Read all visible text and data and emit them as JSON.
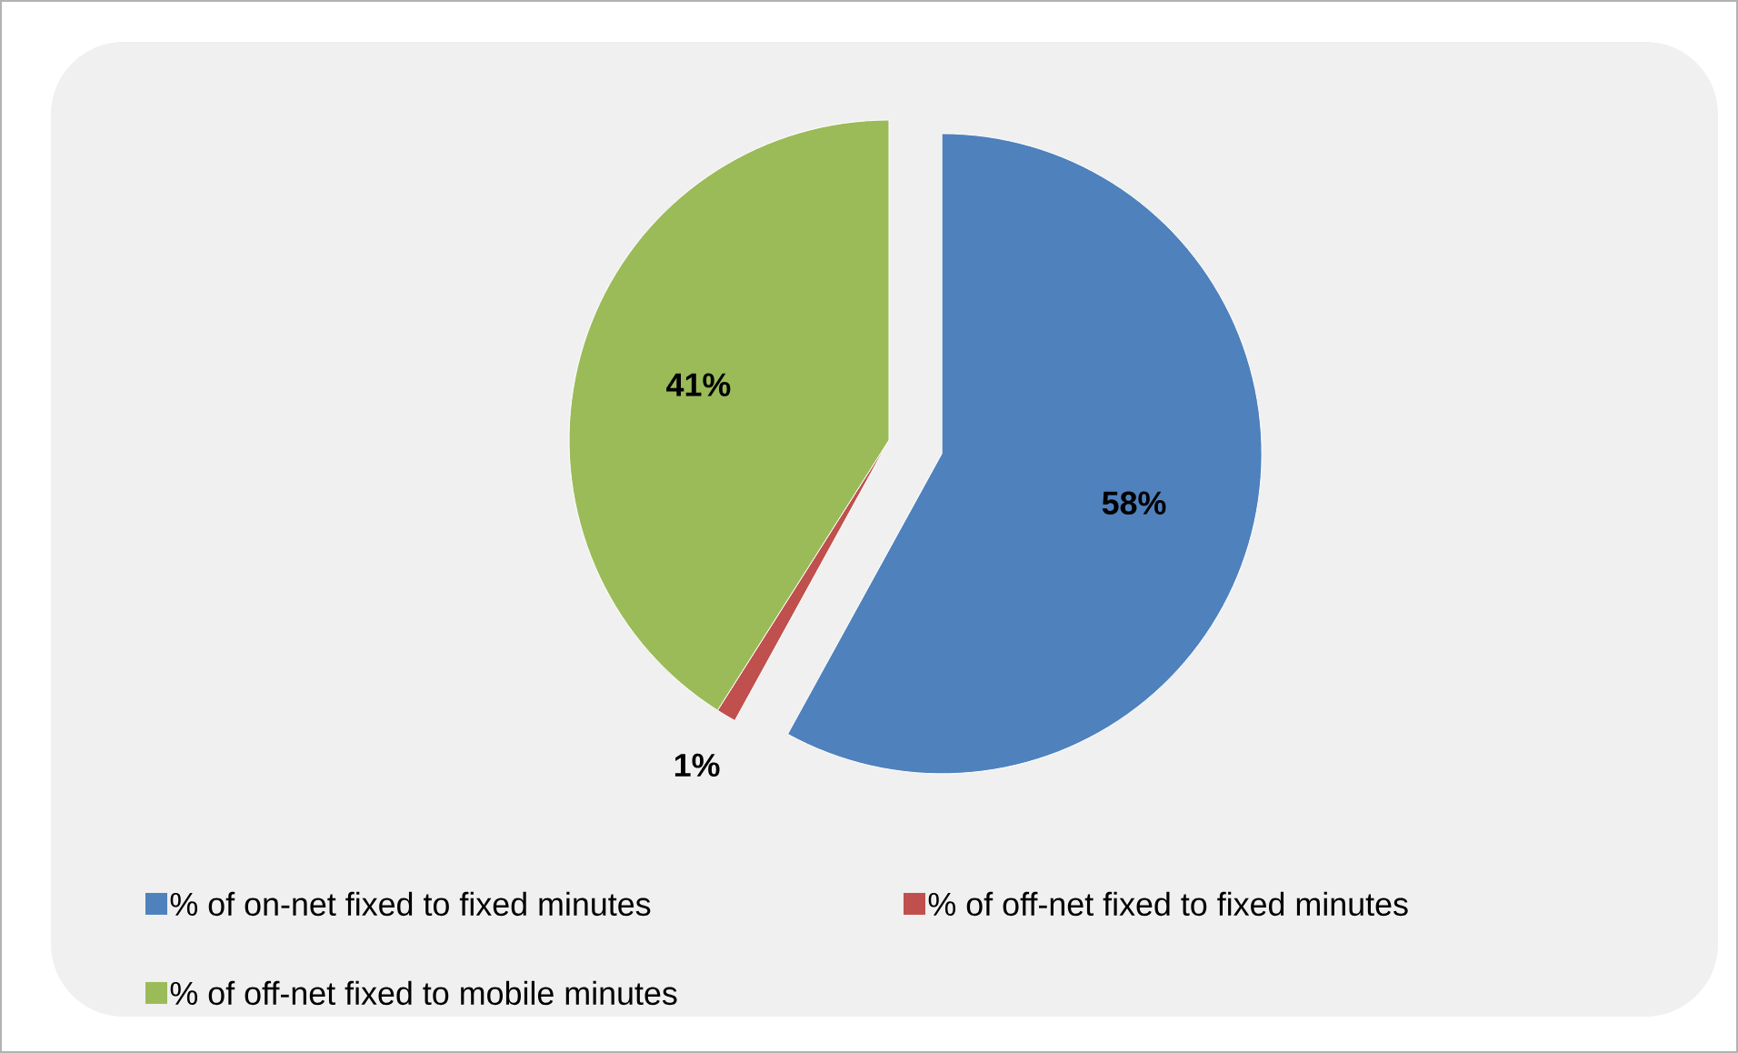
{
  "chart_data": {
    "type": "pie",
    "categories": [
      "% of on-net fixed to fixed minutes",
      "% of off-net fixed to fixed minutes",
      "% of off-net fixed to mobile minutes"
    ],
    "values": [
      58,
      1,
      41
    ],
    "colors": [
      "#4f81bd",
      "#c0504d",
      "#9bbb59"
    ],
    "value_labels": [
      "58%",
      "1%",
      "41%"
    ],
    "legend": "bottom"
  }
}
